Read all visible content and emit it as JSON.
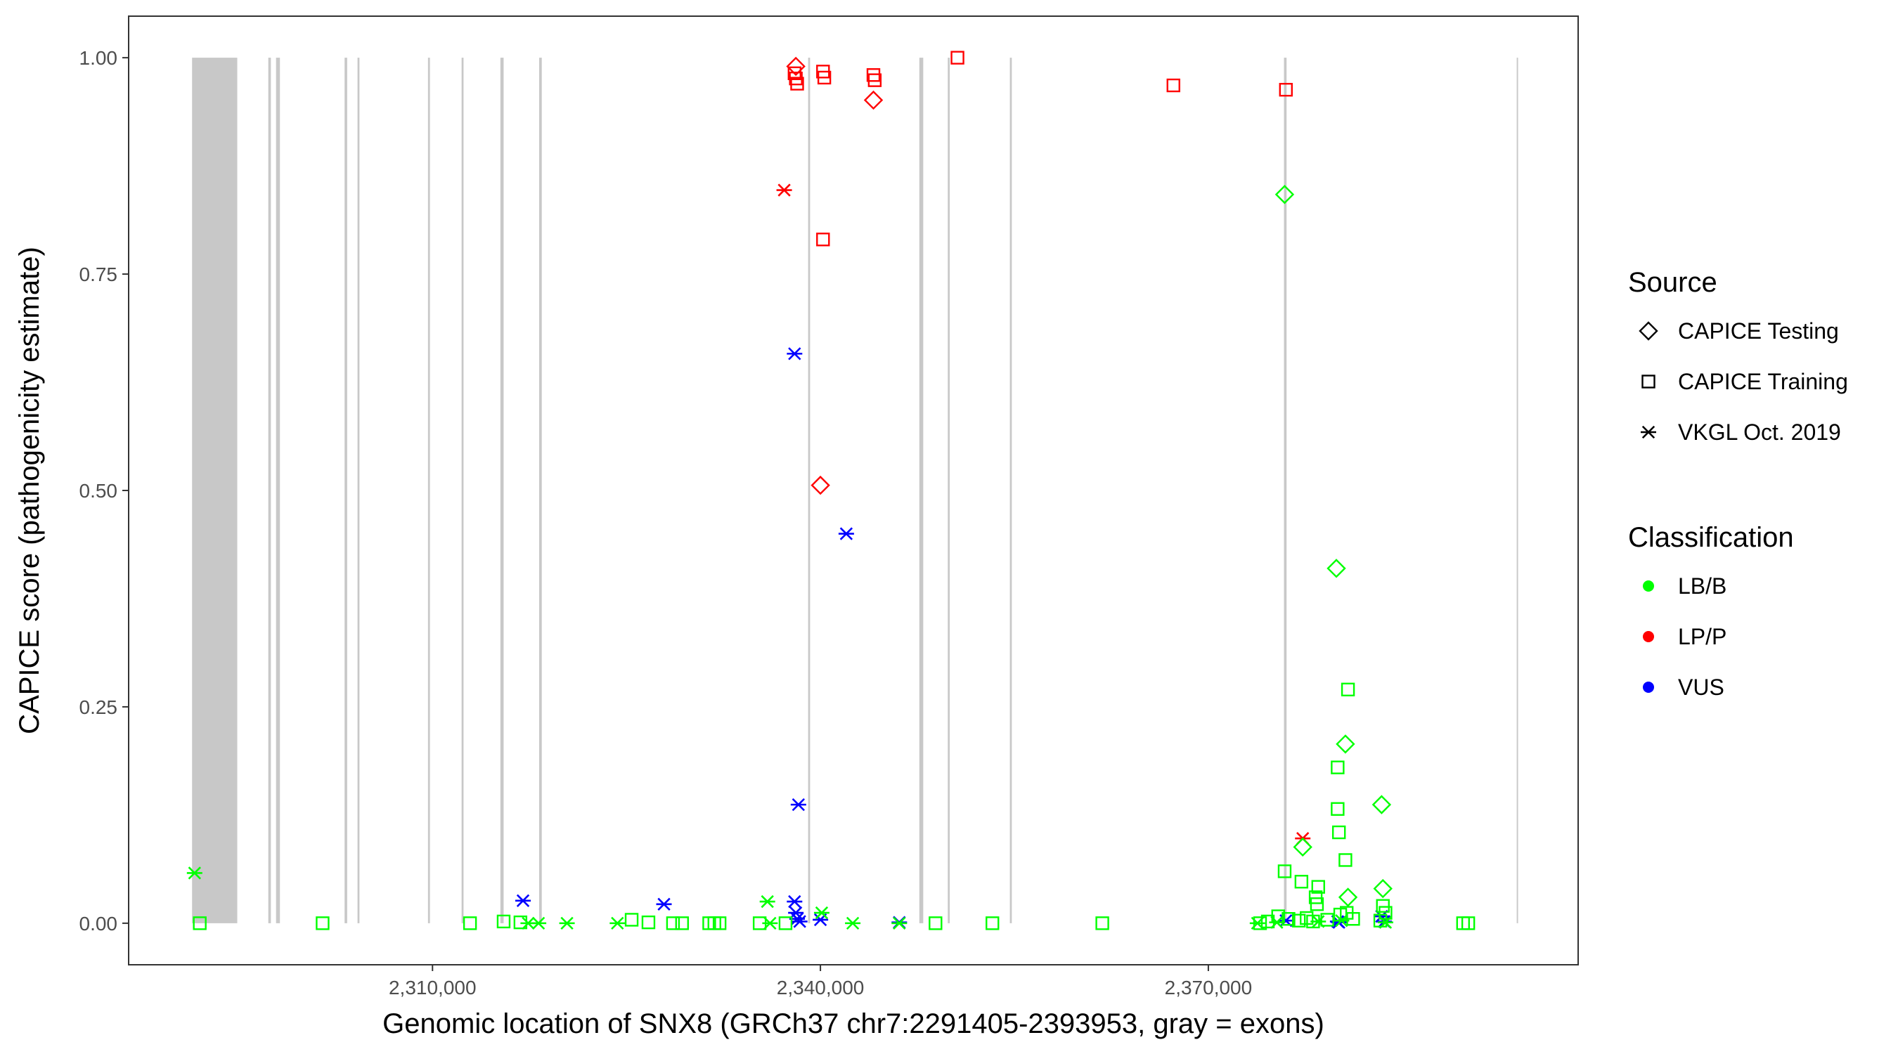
{
  "chart_data": {
    "type": "scatter",
    "title": "",
    "xlabel": "Genomic location of SNX8 (GRCh37 chr7:2291405-2393953, gray = exons)",
    "ylabel": "CAPICE score (pathogenicity estimate)",
    "xlim": [
      2286500,
      2398600
    ],
    "ylim": [
      -0.048,
      1.048
    ],
    "x_ticks": [
      2310000,
      2340000,
      2370000
    ],
    "x_tick_labels": [
      "2,310,000",
      "2,340,000",
      "2,370,000"
    ],
    "y_ticks": [
      0,
      0.25,
      0.5,
      0.75,
      1
    ],
    "y_tick_labels": [
      "0.00",
      "0.25",
      "0.50",
      "0.75",
      "1.00"
    ],
    "grid": false,
    "legend_position": "right",
    "exons": [
      [
        2291405,
        2294900
      ],
      [
        2297300,
        2297500
      ],
      [
        2297900,
        2298200
      ],
      [
        2303200,
        2303400
      ],
      [
        2304200,
        2304350
      ],
      [
        2309650,
        2309800
      ],
      [
        2312250,
        2312400
      ],
      [
        2315250,
        2315500
      ],
      [
        2318250,
        2318450
      ],
      [
        2339050,
        2339200
      ],
      [
        2347650,
        2347950
      ],
      [
        2349850,
        2350000
      ],
      [
        2354650,
        2354800
      ],
      [
        2375850,
        2376050
      ],
      [
        2393850,
        2393953
      ]
    ],
    "legends": [
      {
        "title": "Source",
        "entries": [
          {
            "label": "CAPICE Testing",
            "shape": "diamond"
          },
          {
            "label": "CAPICE Training",
            "shape": "square"
          },
          {
            "label": "VKGL Oct. 2019",
            "shape": "asterisk"
          }
        ]
      },
      {
        "title": "Classification",
        "entries": [
          {
            "label": "LB/B",
            "color": "#00ff00"
          },
          {
            "label": "LP/P",
            "color": "#ff0000"
          },
          {
            "label": "VUS",
            "color": "#0000ff"
          }
        ]
      }
    ],
    "colors": {
      "LB/B": "#00ff00",
      "LP/P": "#ff0000",
      "VUS": "#0000ff"
    },
    "series": [
      {
        "source": "CAPICE Testing",
        "shape": "diamond",
        "classification": "LP/P",
        "points": [
          [
            2338100,
            0.99
          ],
          [
            2344100,
            0.951
          ],
          [
            2340000,
            0.506
          ]
        ]
      },
      {
        "source": "CAPICE Training",
        "shape": "square",
        "classification": "LP/P",
        "points": [
          [
            2338000,
            0.982
          ],
          [
            2338100,
            0.976
          ],
          [
            2338200,
            0.97
          ],
          [
            2340200,
            0.984
          ],
          [
            2340300,
            0.977
          ],
          [
            2344100,
            0.98
          ],
          [
            2344200,
            0.974
          ],
          [
            2350600,
            1.0
          ],
          [
            2367300,
            0.968
          ],
          [
            2376000,
            0.963
          ],
          [
            2340200,
            0.79
          ]
        ]
      },
      {
        "source": "VKGL Oct. 2019",
        "shape": "asterisk",
        "classification": "LP/P",
        "points": [
          [
            2337200,
            0.847
          ],
          [
            2377300,
            0.098
          ]
        ]
      },
      {
        "source": "VKGL Oct. 2019",
        "shape": "asterisk",
        "classification": "VUS",
        "points": [
          [
            2338000,
            0.658
          ],
          [
            2342000,
            0.45
          ],
          [
            2338300,
            0.137
          ],
          [
            2317000,
            0.026
          ],
          [
            2327900,
            0.022
          ],
          [
            2338000,
            0.025
          ],
          [
            2338100,
            0.012
          ],
          [
            2338200,
            0.005
          ],
          [
            2338400,
            0.002
          ],
          [
            2340000,
            0.004
          ],
          [
            2346100,
            0.001
          ],
          [
            2376000,
            0.003
          ],
          [
            2380000,
            0.002
          ],
          [
            2380100,
            0.001
          ],
          [
            2383400,
            0.008
          ],
          [
            2383600,
            0.002
          ]
        ]
      },
      {
        "source": "CAPICE Testing",
        "shape": "diamond",
        "classification": "LB/B",
        "points": [
          [
            2375900,
            0.842
          ],
          [
            2379900,
            0.41
          ],
          [
            2380600,
            0.207
          ],
          [
            2383400,
            0.137
          ],
          [
            2377300,
            0.088
          ],
          [
            2383500,
            0.04
          ],
          [
            2380800,
            0.03
          ]
        ]
      },
      {
        "source": "CAPICE Training",
        "shape": "square",
        "classification": "LB/B",
        "points": [
          [
            2292000,
            0.0
          ],
          [
            2301500,
            0.0
          ],
          [
            2312900,
            0.0
          ],
          [
            2315500,
            0.002
          ],
          [
            2316800,
            0.001
          ],
          [
            2325400,
            0.004
          ],
          [
            2326700,
            0.001
          ],
          [
            2328600,
            0.0
          ],
          [
            2329300,
            0.0
          ],
          [
            2331400,
            0.0
          ],
          [
            2331800,
            0.0
          ],
          [
            2332200,
            0.0
          ],
          [
            2335300,
            0.0
          ],
          [
            2337300,
            0.0
          ],
          [
            2348900,
            0.0
          ],
          [
            2353300,
            0.0
          ],
          [
            2361800,
            0.0
          ],
          [
            2380800,
            0.27
          ],
          [
            2380000,
            0.18
          ],
          [
            2380000,
            0.132
          ],
          [
            2380100,
            0.105
          ],
          [
            2380600,
            0.073
          ],
          [
            2375900,
            0.06
          ],
          [
            2377200,
            0.048
          ],
          [
            2378500,
            0.042
          ],
          [
            2378300,
            0.03
          ],
          [
            2378400,
            0.022
          ],
          [
            2375400,
            0.008
          ],
          [
            2376200,
            0.005
          ],
          [
            2377000,
            0.003
          ],
          [
            2377600,
            0.006
          ],
          [
            2378100,
            0.002
          ],
          [
            2379200,
            0.004
          ],
          [
            2380200,
            0.01
          ],
          [
            2380700,
            0.012
          ],
          [
            2381200,
            0.005
          ],
          [
            2383500,
            0.02
          ],
          [
            2383700,
            0.012
          ],
          [
            2383300,
            0.003
          ],
          [
            2374000,
            0.0
          ],
          [
            2374600,
            0.002
          ],
          [
            2389700,
            0.0
          ],
          [
            2390100,
            0.0
          ]
        ]
      },
      {
        "source": "VKGL Oct. 2019",
        "shape": "asterisk",
        "classification": "LB/B",
        "points": [
          [
            2291600,
            0.058
          ],
          [
            2335900,
            0.025
          ],
          [
            2340100,
            0.012
          ],
          [
            2317400,
            0.0
          ],
          [
            2318200,
            0.0
          ],
          [
            2320400,
            0.0
          ],
          [
            2324300,
            0.0
          ],
          [
            2336100,
            0.0
          ],
          [
            2342500,
            0.0
          ],
          [
            2346100,
            0.0
          ],
          [
            2373800,
            0.0
          ],
          [
            2375300,
            0.001
          ],
          [
            2378500,
            0.002
          ],
          [
            2380300,
            0.003
          ],
          [
            2383700,
            0.001
          ]
        ]
      }
    ]
  }
}
